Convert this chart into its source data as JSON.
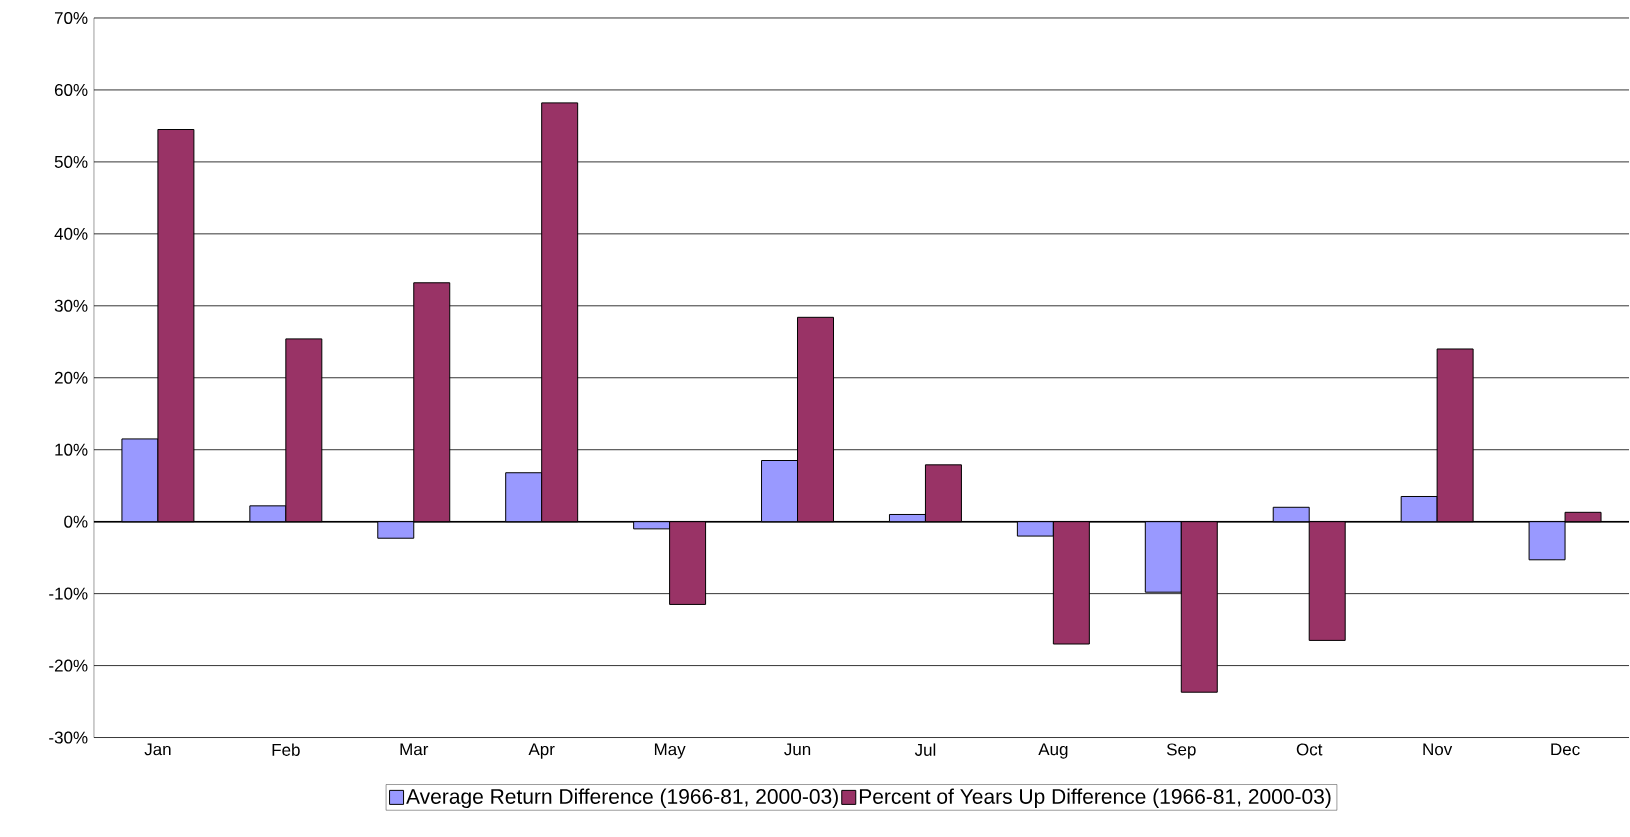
{
  "chart_data": {
    "type": "bar",
    "categories": [
      "Jan",
      "Feb",
      "Mar",
      "Apr",
      "May",
      "Jun",
      "Jul",
      "Aug",
      "Sep",
      "Oct",
      "Nov",
      "Dec"
    ],
    "series": [
      {
        "name": "Average Return Difference (1966-81, 2000-03)",
        "color": "#9999ff",
        "values": [
          11.5,
          2.2,
          -2.3,
          6.8,
          -1.0,
          8.5,
          1.0,
          -2.0,
          -9.8,
          2.0,
          3.5,
          -5.3
        ]
      },
      {
        "name": "Percent of Years Up Difference (1966-81, 2000-03)",
        "color": "#993366",
        "values": [
          54.5,
          25.4,
          33.2,
          58.2,
          -11.5,
          28.4,
          7.9,
          -17.0,
          -23.7,
          -16.5,
          24.0,
          1.3
        ]
      }
    ],
    "ylim": [
      -30,
      70
    ],
    "yticks": [
      {
        "value": -30,
        "label": "-30%"
      },
      {
        "value": -20,
        "label": "-20%"
      },
      {
        "value": -10,
        "label": "-10%"
      },
      {
        "value": 0,
        "label": "0%"
      },
      {
        "value": 10,
        "label": "10%"
      },
      {
        "value": 20,
        "label": "20%"
      },
      {
        "value": 30,
        "label": "30%"
      },
      {
        "value": 40,
        "label": "40%"
      },
      {
        "value": 50,
        "label": "50%"
      },
      {
        "value": 60,
        "label": "60%"
      },
      {
        "value": 70,
        "label": "70%"
      }
    ],
    "grid": "y",
    "legend": "bottom"
  }
}
